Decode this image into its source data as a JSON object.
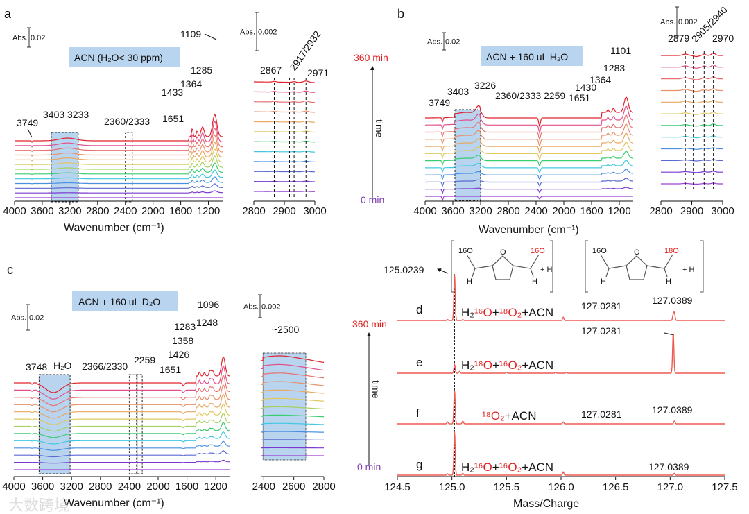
{
  "figure": {
    "panel_labels": {
      "a": "a",
      "b": "b",
      "c": "c",
      "d": "d",
      "e": "e",
      "f": "f",
      "g": "g"
    },
    "time_axis": {
      "top": "360 min",
      "bottom": "0 min",
      "label": "time"
    },
    "colors": {
      "accent_red": "#e8402f",
      "ms_line": "#ee5a50",
      "box_fill": "#b9d4ef"
    },
    "watermark": "大数跨境"
  },
  "chart_data": [
    {
      "id": "a-main",
      "type": "line",
      "title": "ACN  (H₂O< 30 ppm)",
      "xlabel": "Wavenumber (cm⁻¹)",
      "ylabel": "Abs.",
      "xlim": [
        4000,
        985
      ],
      "xticks": [
        "4000",
        "3600",
        "3200",
        "2800",
        "2400",
        "2000",
        "1600",
        "1200"
      ],
      "scale_bar": {
        "label": "Abs.",
        "value": "0.02"
      },
      "n_traces": 13,
      "time_range_min": [
        0,
        360
      ],
      "peaks": [
        {
          "wn": 3749,
          "label": "3749"
        },
        {
          "wn": 3403,
          "label": "3403"
        },
        {
          "wn": 3233,
          "label": "3233"
        },
        {
          "wn": 2360,
          "label": "2360/2333"
        },
        {
          "wn": 1651,
          "label": "1651"
        },
        {
          "wn": 1433,
          "label": "1433"
        },
        {
          "wn": 1364,
          "label": "1364"
        },
        {
          "wn": 1285,
          "label": "1285"
        },
        {
          "wn": 1109,
          "label": "1109"
        }
      ]
    },
    {
      "id": "a-inset",
      "type": "line",
      "xlim": [
        2800,
        3000
      ],
      "xticks": [
        "2800",
        "2900",
        "3000"
      ],
      "scale_bar": {
        "label": "Abs.",
        "value": "0.002"
      },
      "n_traces": 12,
      "peaks": [
        {
          "wn": 2867,
          "label": "2867"
        },
        {
          "wn": 2917,
          "label": "2917/2932"
        },
        {
          "wn": 2932,
          "label": ""
        },
        {
          "wn": 2971,
          "label": "2971"
        }
      ]
    },
    {
      "id": "b-main",
      "type": "line",
      "title": "ACN + 160 uL H₂O",
      "xlabel": "Wavenumber (cm⁻¹)",
      "ylabel": "Abs.",
      "xlim": [
        4000,
        1000
      ],
      "xticks": [
        "4000",
        "3600",
        "3200",
        "2800",
        "2400",
        "2000",
        "1600",
        "1200"
      ],
      "scale_bar": {
        "label": "Abs.",
        "value": "0.02"
      },
      "n_traces": 12,
      "peaks": [
        {
          "wn": 3749,
          "label": "3749"
        },
        {
          "wn": 3403,
          "label": "3403"
        },
        {
          "wn": 3226,
          "label": "3226"
        },
        {
          "wn": 2360,
          "label": "2360/2333"
        },
        {
          "wn": 2259,
          "label": "2259"
        },
        {
          "wn": 1651,
          "label": "1651"
        },
        {
          "wn": 1430,
          "label": "1430"
        },
        {
          "wn": 1364,
          "label": "1364"
        },
        {
          "wn": 1283,
          "label": "1283"
        },
        {
          "wn": 1101,
          "label": "1101"
        }
      ]
    },
    {
      "id": "b-inset",
      "type": "line",
      "xlim": [
        2800,
        3000
      ],
      "xticks": [
        "2800",
        "2900",
        "3000"
      ],
      "scale_bar": {
        "label": "Abs.",
        "value": "0.002"
      },
      "n_traces": 12,
      "peaks": [
        {
          "wn": 2879,
          "label": "2879"
        },
        {
          "wn": 2905,
          "label": "2905/2940"
        },
        {
          "wn": 2940,
          "label": ""
        },
        {
          "wn": 2970,
          "label": "2970"
        }
      ]
    },
    {
      "id": "c-main",
      "type": "line",
      "title": "ACN + 160 uL D₂O",
      "xlabel": "Wavenumber (cm⁻¹)",
      "ylabel": "Abs.",
      "xlim": [
        4000,
        1000
      ],
      "xticks": [
        "4000",
        "3600",
        "3200",
        "2800",
        "2400",
        "2000",
        "1600",
        "1200"
      ],
      "scale_bar": {
        "label": "Abs.",
        "value": "0.02"
      },
      "n_traces": 13,
      "peaks": [
        {
          "wn": 3748,
          "label": "3748"
        },
        {
          "wn": 3450,
          "label": "H₂O"
        },
        {
          "wn": 2366,
          "label": "2366/2330"
        },
        {
          "wn": 2259,
          "label": "2259"
        },
        {
          "wn": 1651,
          "label": "1651"
        },
        {
          "wn": 1426,
          "label": "1426"
        },
        {
          "wn": 1358,
          "label": "1358"
        },
        {
          "wn": 1283,
          "label": "1283"
        },
        {
          "wn": 1248,
          "label": "1248"
        },
        {
          "wn": 1096,
          "label": "1096"
        }
      ]
    },
    {
      "id": "c-inset",
      "type": "line",
      "xlim": [
        2380,
        2800
      ],
      "xticks": [
        "2400",
        "2600",
        "2800"
      ],
      "scale_bar": {
        "label": "Abs.",
        "value": "0.002"
      },
      "n_traces": 13,
      "peaks": [
        {
          "wn": 2500,
          "label": "~2500"
        }
      ]
    },
    {
      "id": "ms",
      "type": "line",
      "xlabel": "Mass/Charge",
      "xlim": [
        124.5,
        127.5
      ],
      "xticks": [
        "124.5",
        "125.0",
        "125.5",
        "126.0",
        "126.5",
        "127.0",
        "127.5"
      ],
      "annotations": {
        "m125": "125.0239",
        "m127a": "127.0281",
        "m127b": "127.0389"
      },
      "structures": {
        "left": {
          "o1": "16O",
          "o2": "16O",
          "h1": "H",
          "h2": "H",
          "ring_o": "O",
          "plus": "+ H"
        },
        "right": {
          "o1": "16O",
          "o2": "18O",
          "h1": "H",
          "h2": "H",
          "ring_o": "O",
          "plus": "+ H"
        }
      },
      "series": [
        {
          "name": "d",
          "label_parts": [
            [
              "H₂",
              "k"
            ],
            [
              "¹⁶O",
              "r"
            ],
            [
              "+",
              "k"
            ],
            [
              "¹⁸O₂",
              "r"
            ],
            [
              "+ACN",
              "k"
            ]
          ],
          "peaks": [
            [
              124.96,
              2
            ],
            [
              125.0239,
              100
            ],
            [
              125.1,
              2
            ],
            [
              126.02,
              7
            ],
            [
              127.0281,
              12
            ],
            [
              127.0389,
              15
            ]
          ]
        },
        {
          "name": "e",
          "label_parts": [
            [
              "H₂",
              "k"
            ],
            [
              "¹⁸O",
              "r"
            ],
            [
              "+",
              "k"
            ],
            [
              "¹⁶O₂",
              "r"
            ],
            [
              "+ACN",
              "k"
            ]
          ],
          "peaks": [
            [
              125.0239,
              19
            ],
            [
              125.07,
              4
            ],
            [
              125.5,
              2
            ],
            [
              125.95,
              2
            ],
            [
              126.05,
              2
            ],
            [
              127.0281,
              87
            ]
          ]
        },
        {
          "name": "f",
          "label_parts": [
            [
              "¹⁸O₂",
              "r"
            ],
            [
              "+ACN",
              "k"
            ]
          ],
          "peaks": [
            [
              124.96,
              4
            ],
            [
              125.0239,
              73
            ],
            [
              125.1,
              6
            ],
            [
              126.02,
              4
            ],
            [
              127.0389,
              6
            ]
          ]
        },
        {
          "name": "g",
          "label_parts": [
            [
              "H₂",
              "k"
            ],
            [
              "¹⁶O",
              "r"
            ],
            [
              "+",
              "k"
            ],
            [
              "¹⁶O₂",
              "r"
            ],
            [
              "+ACN",
              "k"
            ]
          ],
          "peaks": [
            [
              124.96,
              3
            ],
            [
              125.0239,
              94
            ],
            [
              125.1,
              4
            ],
            [
              126.02,
              7
            ],
            [
              127.0389,
              4
            ]
          ]
        }
      ]
    }
  ]
}
